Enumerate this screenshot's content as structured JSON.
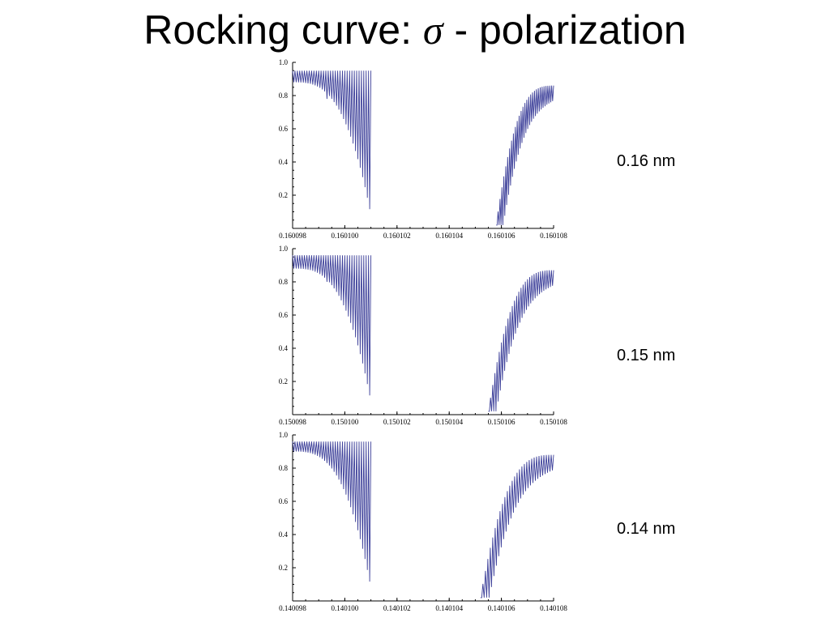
{
  "slide": {
    "title_prefix": "Rocking curve: ",
    "title_symbol": "σ",
    "title_suffix": " - polarization"
  },
  "style": {
    "line_color": "#3c3f99",
    "axis_color": "#000000"
  },
  "chart_data": [
    {
      "type": "line",
      "label": "0.16 nm",
      "ylim": [
        0,
        1.0
      ],
      "xlim": [
        0.160098,
        0.160108
      ],
      "x_ticks": [
        "0.160098",
        "0.160100",
        "0.160102",
        "0.160104",
        "0.160106",
        "0.160108"
      ],
      "y_ticks": [
        "0.2",
        "0.4",
        "0.6",
        "0.8",
        "1.0"
      ],
      "series": [
        {
          "left_band": {
            "x_start": 0.160098,
            "x_end": 0.160101,
            "peak": 0.95,
            "min_start": 0.88,
            "min_end": 0.08,
            "gap_x": 0.1600993,
            "gap_min": 0.78
          },
          "right_band": {
            "x_start": 0.1601058,
            "x_end": 0.160108,
            "peak_start": 0.02,
            "peak_end": 0.86,
            "min_end": 0.75
          },
          "oscillations": 60
        }
      ]
    },
    {
      "type": "line",
      "label": "0.15 nm",
      "ylim": [
        0,
        1.0
      ],
      "xlim": [
        0.150098,
        0.150108
      ],
      "x_ticks": [
        "0.150098",
        "0.150100",
        "0.150102",
        "0.150104",
        "0.150106",
        "0.150108"
      ],
      "y_ticks": [
        "0.2",
        "0.4",
        "0.6",
        "0.8",
        "1.0"
      ],
      "series": [
        {
          "left_band": {
            "x_start": 0.150098,
            "x_end": 0.150101,
            "peak": 0.96,
            "min_start": 0.88,
            "min_end": 0.08,
            "gap_x": 0.1500993,
            "gap_min": 0.8
          },
          "right_band": {
            "x_start": 0.1501055,
            "x_end": 0.150108,
            "peak_start": 0.02,
            "peak_end": 0.87,
            "min_end": 0.78
          },
          "oscillations": 60
        }
      ]
    },
    {
      "type": "line",
      "label": "0.14 nm",
      "ylim": [
        0,
        1.0
      ],
      "xlim": [
        0.140098,
        0.140108
      ],
      "x_ticks": [
        "0.140098",
        "0.140100",
        "0.140102",
        "0.140104",
        "0.140106",
        "0.140108"
      ],
      "y_ticks": [
        "0.2",
        "0.4",
        "0.6",
        "0.8",
        "1.0"
      ],
      "series": [
        {
          "left_band": {
            "x_start": 0.140098,
            "x_end": 0.140101,
            "peak": 0.96,
            "min_start": 0.9,
            "min_end": 0.08,
            "gap_x": null,
            "gap_min": null
          },
          "right_band": {
            "x_start": 0.1401052,
            "x_end": 0.140108,
            "peak_start": 0.02,
            "peak_end": 0.88,
            "min_end": 0.8
          },
          "oscillations": 60
        }
      ]
    }
  ]
}
